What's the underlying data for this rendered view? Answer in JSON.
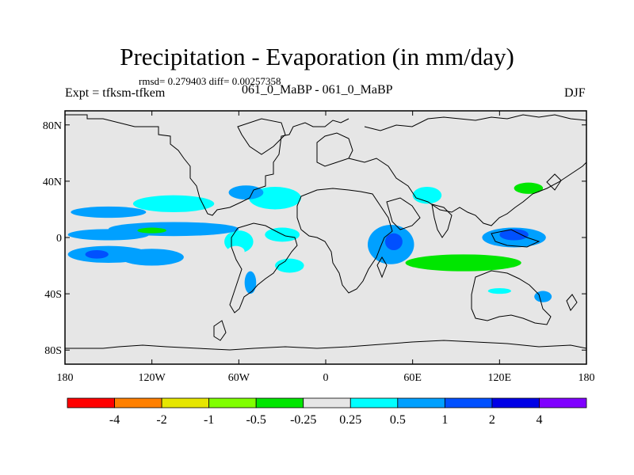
{
  "header": {
    "title": "Precipitation - Evaporation (in mm/day)",
    "stats": "rmsd= 0.279403 diff= 0.00257358",
    "experiment": "Expt = tfksm-tfkem",
    "subtitle": "061_0_MaBP - 061_0_MaBP",
    "season": "DJF"
  },
  "map_axes": {
    "lat_ticks": [
      "80N",
      "40N",
      "0",
      "40S",
      "80S"
    ],
    "lon_ticks": [
      "180",
      "120W",
      "60W",
      "0",
      "60E",
      "120E",
      "180"
    ],
    "lat_values": [
      80,
      40,
      0,
      -40,
      -80
    ],
    "lon_values": [
      -180,
      -120,
      -60,
      0,
      60,
      120,
      180
    ],
    "lon_range": [
      -180,
      180
    ],
    "lat_range": [
      -90,
      90
    ]
  },
  "colorbar": {
    "colors": [
      "#ff0000",
      "#ff8000",
      "#e6e600",
      "#80ff00",
      "#00e600",
      "#e6e6e6",
      "#00ffff",
      "#00a0ff",
      "#0050ff",
      "#0000e6",
      "#8000ff"
    ],
    "labels": [
      "-4",
      "-2",
      "-1",
      "-0.5",
      "-0.25",
      "0.25",
      "0.5",
      "1",
      "2",
      "4"
    ]
  },
  "chart_data": {
    "type": "heatmap",
    "title": "Precipitation - Evaporation (in mm/day)",
    "units": "mm/day",
    "levels": [
      -4,
      -2,
      -1,
      -0.5,
      -0.25,
      0.25,
      0.5,
      1,
      2,
      4
    ],
    "features": [
      {
        "lon": -150,
        "lat": 2,
        "value": 0.5,
        "rx": 28,
        "ry": 4
      },
      {
        "lon": -105,
        "lat": 6,
        "value": 0.5,
        "rx": 45,
        "ry": 5
      },
      {
        "lon": -150,
        "lat": -12,
        "value": 0.5,
        "rx": 28,
        "ry": 6
      },
      {
        "lon": -158,
        "lat": -12,
        "value": 1,
        "rx": 8,
        "ry": 3
      },
      {
        "lon": -120,
        "lat": -14,
        "value": 0.5,
        "rx": 22,
        "ry": 6
      },
      {
        "lon": -150,
        "lat": 18,
        "value": 0.5,
        "rx": 26,
        "ry": 4
      },
      {
        "lon": -105,
        "lat": 24,
        "value": 0.25,
        "rx": 28,
        "ry": 6
      },
      {
        "lon": -160,
        "lat": 5,
        "value": -0.25,
        "rx": 22,
        "ry": 5
      },
      {
        "lon": -120,
        "lat": 5,
        "value": -0.5,
        "rx": 10,
        "ry": 2
      },
      {
        "lon": -150,
        "lat": 40,
        "value": -0.25,
        "rx": 8,
        "ry": 5
      },
      {
        "lon": -175,
        "lat": -24,
        "value": -0.25,
        "rx": 6,
        "ry": 8
      },
      {
        "lon": -150,
        "lat": -2,
        "value": -0.25,
        "rx": 30,
        "ry": 3
      },
      {
        "lon": -60,
        "lat": -3,
        "value": 0.25,
        "rx": 10,
        "ry": 8
      },
      {
        "lon": -62,
        "lat": -10,
        "value": -0.25,
        "rx": 6,
        "ry": 4
      },
      {
        "lon": -52,
        "lat": -32,
        "value": 0.5,
        "rx": 4,
        "ry": 8
      },
      {
        "lon": -30,
        "lat": 2,
        "value": 0.25,
        "rx": 12,
        "ry": 5
      },
      {
        "lon": -35,
        "lat": 28,
        "value": 0.25,
        "rx": 18,
        "ry": 8
      },
      {
        "lon": -25,
        "lat": -20,
        "value": 0.25,
        "rx": 10,
        "ry": 5
      },
      {
        "lon": -55,
        "lat": 32,
        "value": 0.5,
        "rx": 12,
        "ry": 5
      },
      {
        "lon": 45,
        "lat": -5,
        "value": 0.5,
        "rx": 16,
        "ry": 14
      },
      {
        "lon": 47,
        "lat": -3,
        "value": 1,
        "rx": 6,
        "ry": 6
      },
      {
        "lon": 70,
        "lat": 30,
        "value": 0.25,
        "rx": 10,
        "ry": 6
      },
      {
        "lon": 100,
        "lat": -12,
        "value": -0.25,
        "rx": 70,
        "ry": 10
      },
      {
        "lon": 95,
        "lat": -18,
        "value": -0.5,
        "rx": 40,
        "ry": 6
      },
      {
        "lon": 130,
        "lat": 0,
        "value": 0.5,
        "rx": 22,
        "ry": 7
      },
      {
        "lon": 130,
        "lat": 2,
        "value": 1,
        "rx": 10,
        "ry": 4
      },
      {
        "lon": 135,
        "lat": 35,
        "value": -0.25,
        "rx": 22,
        "ry": 8
      },
      {
        "lon": 140,
        "lat": 35,
        "value": -0.5,
        "rx": 10,
        "ry": 4
      },
      {
        "lon": 120,
        "lat": -38,
        "value": 0.25,
        "rx": 8,
        "ry": 2
      },
      {
        "lon": 150,
        "lat": -42,
        "value": 0.5,
        "rx": 6,
        "ry": 4
      },
      {
        "lon": 25,
        "lat": 52,
        "value": -0.25,
        "rx": 10,
        "ry": 4
      },
      {
        "lon": 170,
        "lat": -20,
        "value": -0.25,
        "rx": 8,
        "ry": 10
      },
      {
        "lon": 160,
        "lat": -75,
        "value": -0.25,
        "rx": 5,
        "ry": 3
      }
    ]
  }
}
